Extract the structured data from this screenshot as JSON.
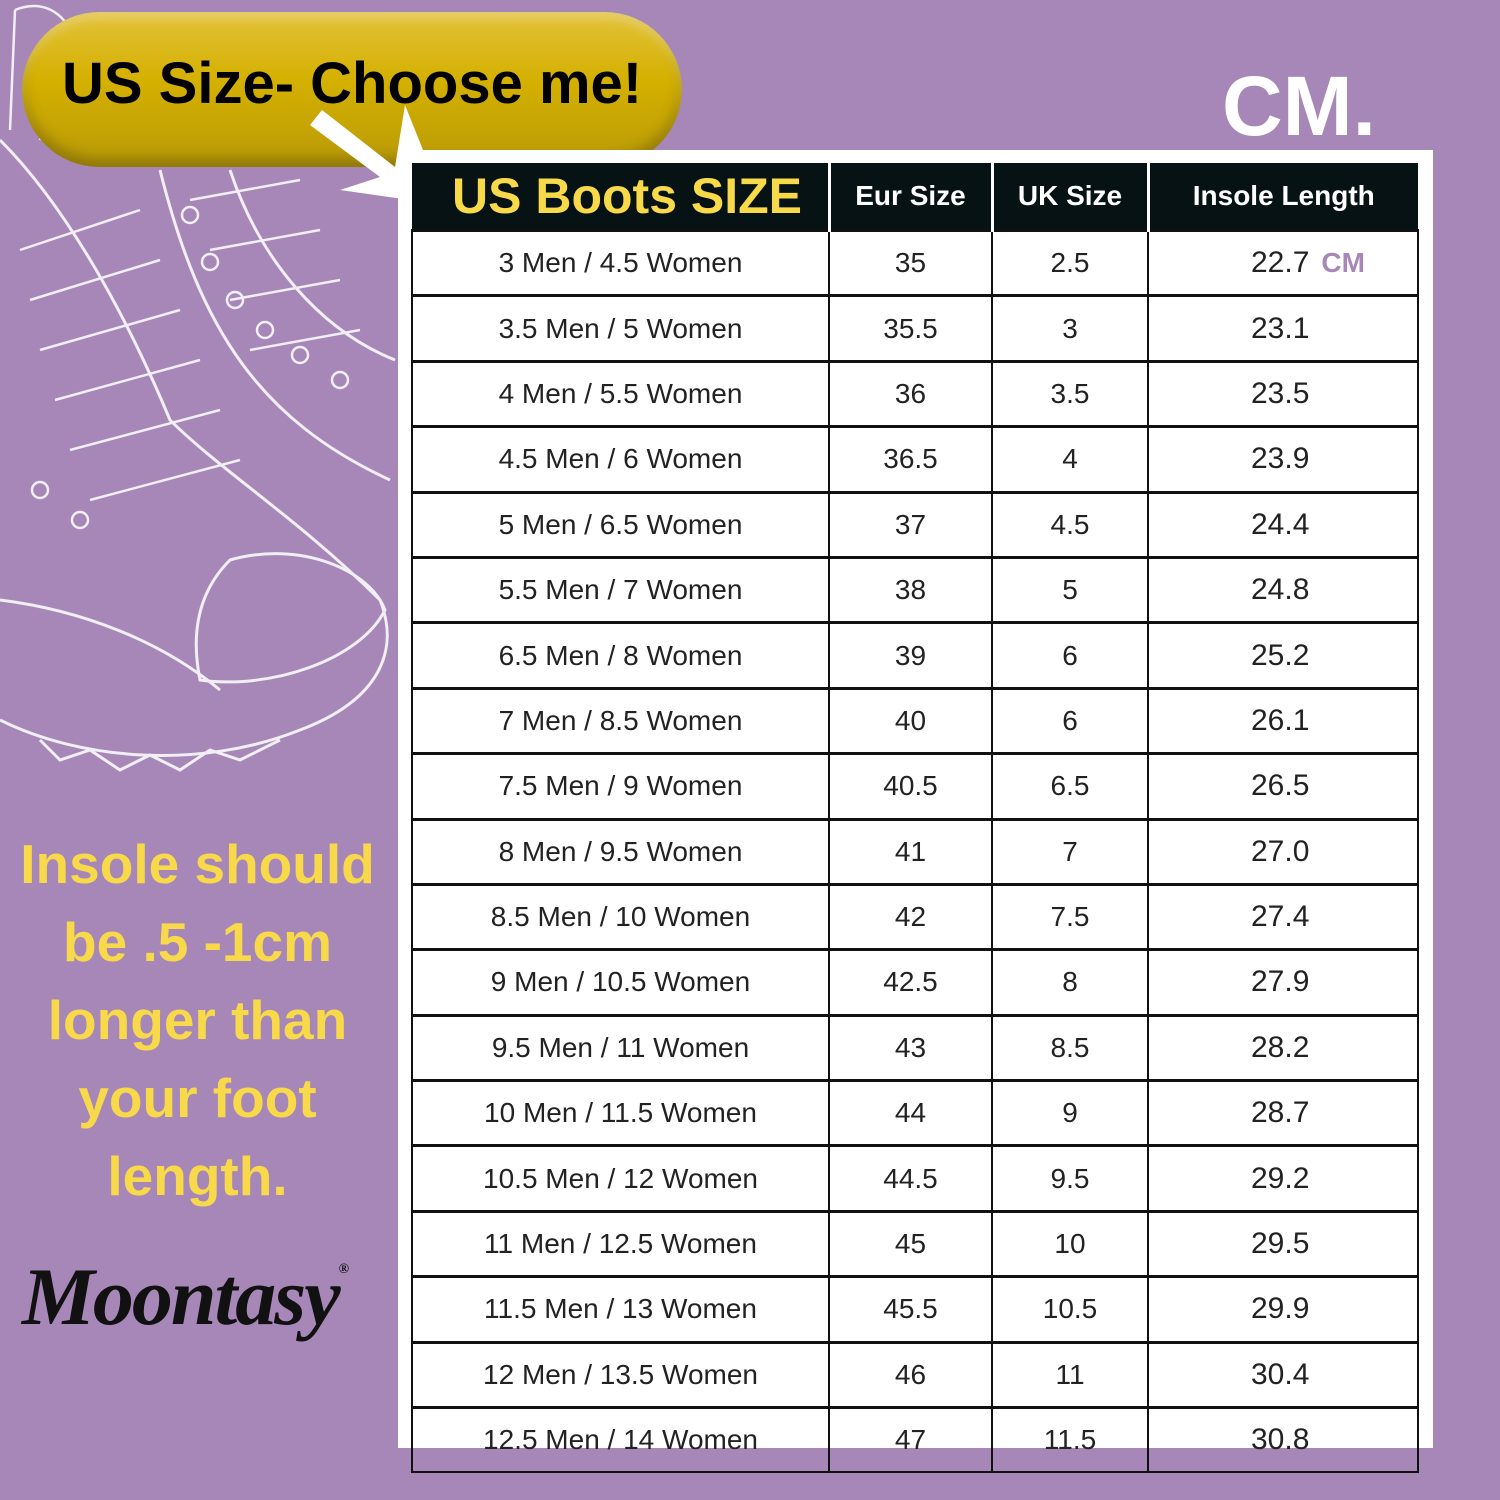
{
  "colors": {
    "background": "#a687b8",
    "accent_yellow": "#f8d94a",
    "header_bg": "#061214",
    "pill": "#d4b000"
  },
  "banner": {
    "text": "US Size- Choose me!",
    "arrow_icon": "arrow-down-right"
  },
  "unit_title": "CM.",
  "table": {
    "headers": [
      "US Boots SIZE",
      "Eur Size",
      "UK Size",
      "Insole Length"
    ],
    "first_unit": "CM",
    "rows": [
      [
        "3 Men / 4.5 Women",
        "35",
        "2.5",
        "22.7"
      ],
      [
        "3.5 Men / 5 Women",
        "35.5",
        "3",
        "23.1"
      ],
      [
        "4 Men / 5.5 Women",
        "36",
        "3.5",
        "23.5"
      ],
      [
        "4.5 Men / 6 Women",
        "36.5",
        "4",
        "23.9"
      ],
      [
        "5 Men / 6.5 Women",
        "37",
        "4.5",
        "24.4"
      ],
      [
        "5.5 Men / 7 Women",
        "38",
        "5",
        "24.8"
      ],
      [
        "6.5 Men / 8 Women",
        "39",
        "6",
        "25.2"
      ],
      [
        "7 Men / 8.5 Women",
        "40",
        "6",
        "26.1"
      ],
      [
        "7.5 Men / 9 Women",
        "40.5",
        "6.5",
        "26.5"
      ],
      [
        "8 Men / 9.5 Women",
        "41",
        "7",
        "27.0"
      ],
      [
        "8.5 Men / 10 Women",
        "42",
        "7.5",
        "27.4"
      ],
      [
        "9 Men / 10.5 Women",
        "42.5",
        "8",
        "27.9"
      ],
      [
        "9.5 Men / 11 Women",
        "43",
        "8.5",
        "28.2"
      ],
      [
        "10 Men / 11.5 Women",
        "44",
        "9",
        "28.7"
      ],
      [
        "10.5 Men / 12 Women",
        "44.5",
        "9.5",
        "29.2"
      ],
      [
        "11 Men / 12.5 Women",
        "45",
        "10",
        "29.5"
      ],
      [
        "11.5 Men / 13 Women",
        "45.5",
        "10.5",
        "29.9"
      ],
      [
        "12 Men / 13.5 Women",
        "46",
        "11",
        "30.4"
      ],
      [
        "12.5 Men / 14 Women",
        "47",
        "11.5",
        "30.8"
      ]
    ]
  },
  "note": [
    "Insole should",
    "be .5 -1cm",
    "longer than",
    "your foot",
    "length."
  ],
  "logo": {
    "text": "Moontasy",
    "mark": "®"
  }
}
